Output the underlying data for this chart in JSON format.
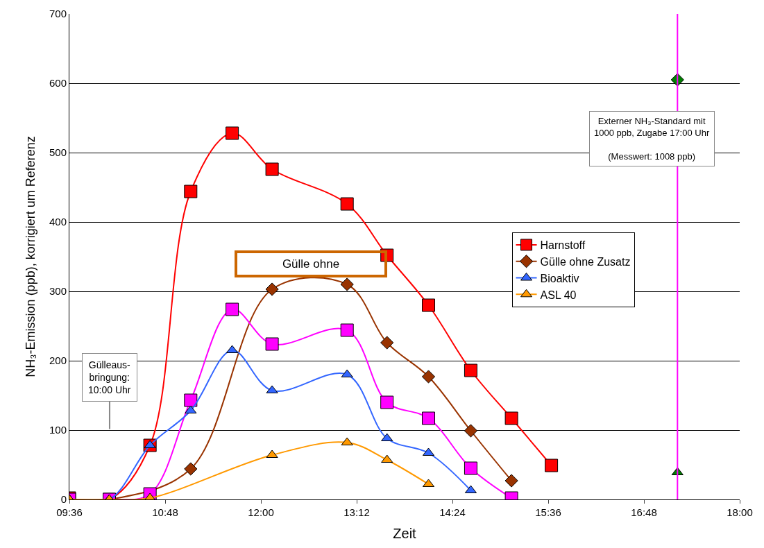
{
  "chart_data": {
    "type": "line",
    "xlabel": "Zeit",
    "ylabel": "NH₃-Emission (ppb), korrigiert um Referenz",
    "x": [
      9.6,
      10.1,
      10.61,
      11.12,
      11.64,
      12.14,
      13.08,
      13.58,
      14.1,
      14.63,
      15.14,
      15.64
    ],
    "series": [
      {
        "name": "Harnstoff",
        "color": "#ff0000",
        "marker": "square",
        "values": [
          2,
          0,
          78,
          444,
          528,
          476,
          426,
          352,
          280,
          186,
          117,
          49
        ]
      },
      {
        "name": "Gülle ohne Zusatz",
        "color": "#993300",
        "marker": "diamond",
        "values": [
          0,
          0,
          null,
          44,
          null,
          303,
          310,
          226,
          177,
          99,
          27,
          null
        ]
      },
      {
        "color": "#ff00ff",
        "marker": "square",
        "values": [
          0,
          0,
          8,
          143,
          274,
          224,
          244,
          140,
          117,
          45,
          2,
          null
        ]
      },
      {
        "name": "Bioaktiv",
        "color": "#3366ff",
        "marker": "triangle",
        "values": [
          0,
          0,
          78,
          128,
          215,
          157,
          180,
          88,
          67,
          13,
          null,
          null
        ]
      },
      {
        "name": "ASL 40",
        "color": "#ff9900",
        "marker": "triangle",
        "values": [
          0,
          0,
          2,
          null,
          null,
          64,
          82,
          57,
          22,
          null,
          null,
          null
        ]
      },
      {
        "type": "scatter",
        "color": "#008000",
        "marker": "diamond",
        "x": [
          17.22
        ],
        "values": [
          605
        ]
      },
      {
        "type": "scatter",
        "color": "#008000",
        "marker": "triangle",
        "x": [
          17.22
        ],
        "values": [
          39
        ]
      }
    ],
    "ref_lines": [
      {
        "axis": "x",
        "value": 17.22,
        "color": "#ff00ff"
      }
    ],
    "annotations": [
      "Gülleaus-\nbringung:\n10:00 Uhr",
      "Gülle ohne",
      "Externer NH₃-Standard mit\n1000 ppb, Zugabe 17:00 Uhr\n\n(Messwert: 1008 ppb)"
    ],
    "xlim": [
      9.6,
      18.0
    ],
    "xticks": [
      {
        "value": 9.6,
        "label": "09:36"
      },
      {
        "value": 10.8,
        "label": "10:48"
      },
      {
        "value": 12.0,
        "label": "12:00"
      },
      {
        "value": 13.2,
        "label": "13:12"
      },
      {
        "value": 14.4,
        "label": "14:24"
      },
      {
        "value": 15.6,
        "label": "15:36"
      },
      {
        "value": 16.8,
        "label": "16:48"
      },
      {
        "value": 18.0,
        "label": "18:00"
      }
    ],
    "ylim": [
      0,
      700
    ],
    "yticks": [
      0,
      100,
      200,
      300,
      400,
      500,
      600,
      700
    ],
    "grid": "y",
    "legend": "right"
  }
}
